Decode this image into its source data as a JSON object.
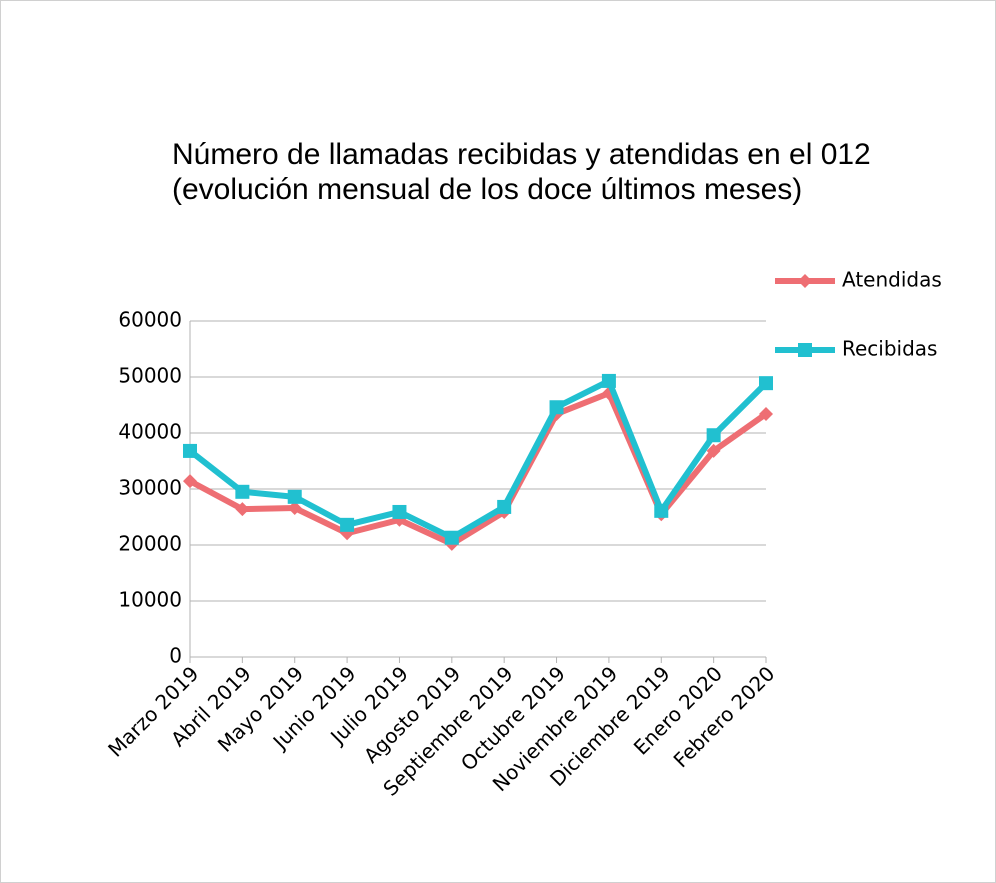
{
  "chart_data": {
    "type": "line",
    "title": [
      "Número de llamadas recibidas y atendidas en el 012",
      "(evolución mensual de los doce últimos meses)"
    ],
    "categories": [
      "Marzo 2019",
      "Abril 2019",
      "Mayo 2019",
      "Junio 2019",
      "Julio 2019",
      "Agosto 2019",
      "Septiembre 2019",
      "Octubre 2019",
      "Noviembre 2019",
      "Diciembre 2019",
      "Enero 2020",
      "Febrero 2020"
    ],
    "series": [
      {
        "name": "Atendidas",
        "color": "#ee6e73",
        "marker": "diamond",
        "values": [
          31400,
          26400,
          26600,
          22100,
          24500,
          20200,
          25900,
          43400,
          47100,
          25500,
          36800,
          43400
        ]
      },
      {
        "name": "Recibidas",
        "color": "#21c0d0",
        "marker": "square",
        "values": [
          36800,
          29500,
          28600,
          23600,
          25900,
          21300,
          26800,
          44600,
          49300,
          26100,
          39600,
          48900
        ]
      }
    ],
    "ylim": [
      0,
      60000
    ],
    "yticks": [
      0,
      10000,
      20000,
      30000,
      40000,
      50000,
      60000
    ],
    "grid": true,
    "legend": "right"
  }
}
